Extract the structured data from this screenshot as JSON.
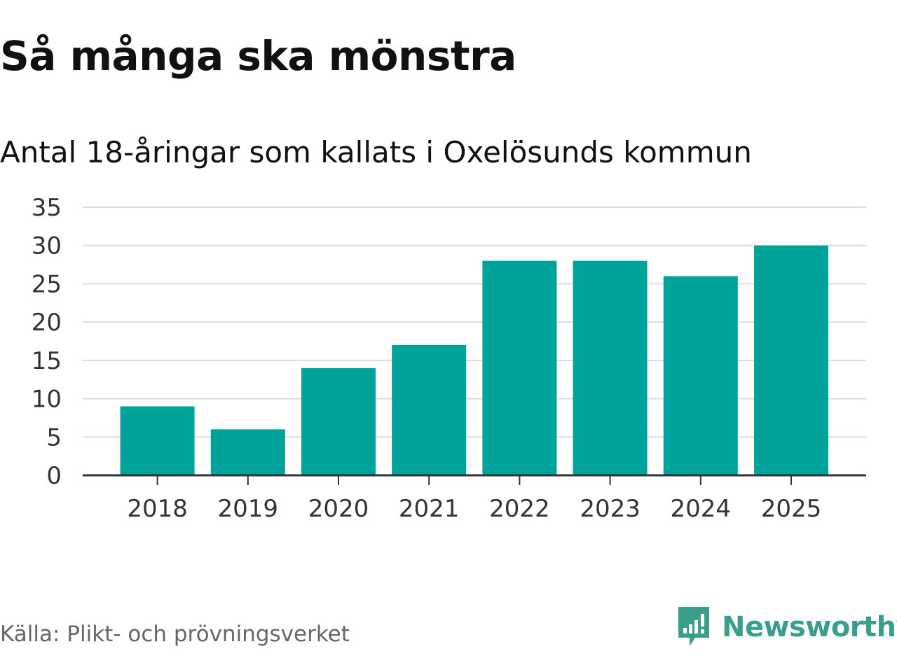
{
  "chart_data": {
    "type": "bar",
    "title": "Så många ska mönstra",
    "subtitle": "Antal 18-åringar som kallats i Oxelösunds kommun",
    "categories": [
      "2018",
      "2019",
      "2020",
      "2021",
      "2022",
      "2023",
      "2024",
      "2025"
    ],
    "values": [
      9,
      6,
      14,
      17,
      28,
      28,
      26,
      30
    ],
    "ylim": [
      0,
      35
    ],
    "yticks": [
      "0",
      "5",
      "10",
      "15",
      "20",
      "25",
      "30",
      "35"
    ],
    "xlabel": "",
    "ylabel": "",
    "grid": true,
    "bar_color": "#00a39a"
  },
  "footer": {
    "source": "Källa: Plikt- och prövningsverket",
    "brand": "Newsworthy",
    "brand_icon": "newsworthy-logo-icon",
    "brand_color": "#3a9e8c"
  }
}
